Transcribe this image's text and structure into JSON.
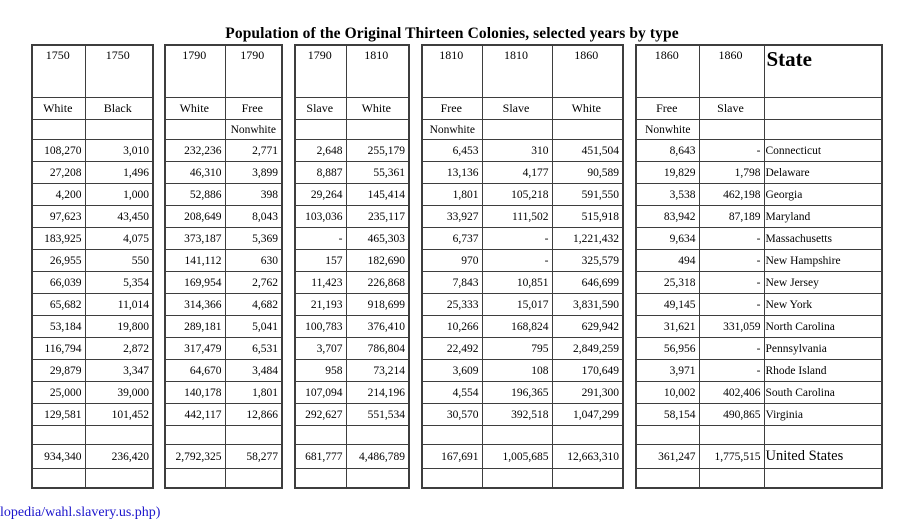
{
  "title": "Population of the Original Thirteen Colonies, selected years by type",
  "source_link": "lopedia/wahl.slavery.us.php)",
  "colors": {
    "border": "#3e3e3e",
    "link_blue": "#1b14cc",
    "text": "#000000",
    "background": "#ffffff"
  },
  "columns": [
    {
      "year": "1750",
      "type": "White",
      "nonwhite": ""
    },
    {
      "year": "1750",
      "type": "Black",
      "nonwhite": ""
    },
    {
      "year": "1790",
      "type": "White",
      "nonwhite": ""
    },
    {
      "year": "1790",
      "type": "Free",
      "nonwhite": "Nonwhite"
    },
    {
      "year": "1790",
      "type": "Slave",
      "nonwhite": ""
    },
    {
      "year": "1810",
      "type": "White",
      "nonwhite": ""
    },
    {
      "year": "1810",
      "type": "Free",
      "nonwhite": "Nonwhite"
    },
    {
      "year": "1810",
      "type": "Slave",
      "nonwhite": ""
    },
    {
      "year": "1860",
      "type": "White",
      "nonwhite": ""
    },
    {
      "year": "1860",
      "type": "Free",
      "nonwhite": "Nonwhite"
    },
    {
      "year": "1860",
      "type": "Slave",
      "nonwhite": ""
    },
    {
      "year": "State",
      "type": "",
      "nonwhite": ""
    }
  ],
  "segments": [
    {
      "col_indexes": [
        0,
        1
      ],
      "widths": [
        53,
        68
      ],
      "gap_after": 10
    },
    {
      "col_indexes": [
        2,
        3
      ],
      "widths": [
        60,
        57
      ],
      "gap_after": 11
    },
    {
      "col_indexes": [
        4,
        5
      ],
      "widths": [
        51,
        63
      ],
      "gap_after": 11
    },
    {
      "col_indexes": [
        6,
        7,
        8
      ],
      "widths": [
        60,
        70,
        71
      ],
      "gap_after": 11
    },
    {
      "col_indexes": [
        9,
        10,
        11
      ],
      "widths": [
        63,
        65,
        118
      ],
      "gap_after": 0
    }
  ],
  "rows": [
    {
      "state": "Connecticut",
      "values": [
        "108,270",
        "3,010",
        "232,236",
        "2,771",
        "2,648",
        "255,179",
        "6,453",
        "310",
        "451,504",
        "8,643",
        "-"
      ]
    },
    {
      "state": "Delaware",
      "values": [
        "27,208",
        "1,496",
        "46,310",
        "3,899",
        "8,887",
        "55,361",
        "13,136",
        "4,177",
        "90,589",
        "19,829",
        "1,798"
      ]
    },
    {
      "state": "Georgia",
      "values": [
        "4,200",
        "1,000",
        "52,886",
        "398",
        "29,264",
        "145,414",
        "1,801",
        "105,218",
        "591,550",
        "3,538",
        "462,198"
      ]
    },
    {
      "state": "Maryland",
      "values": [
        "97,623",
        "43,450",
        "208,649",
        "8,043",
        "103,036",
        "235,117",
        "33,927",
        "111,502",
        "515,918",
        "83,942",
        "87,189"
      ]
    },
    {
      "state": "Massachusetts",
      "values": [
        "183,925",
        "4,075",
        "373,187",
        "5,369",
        "-",
        "465,303",
        "6,737",
        "-",
        "1,221,432",
        "9,634",
        "-"
      ]
    },
    {
      "state": "New Hampshire",
      "values": [
        "26,955",
        "550",
        "141,112",
        "630",
        "157",
        "182,690",
        "970",
        "-",
        "325,579",
        "494",
        "-"
      ]
    },
    {
      "state": "New Jersey",
      "values": [
        "66,039",
        "5,354",
        "169,954",
        "2,762",
        "11,423",
        "226,868",
        "7,843",
        "10,851",
        "646,699",
        "25,318",
        "-"
      ]
    },
    {
      "state": "New York",
      "values": [
        "65,682",
        "11,014",
        "314,366",
        "4,682",
        "21,193",
        "918,699",
        "25,333",
        "15,017",
        "3,831,590",
        "49,145",
        "-"
      ]
    },
    {
      "state": "North Carolina",
      "values": [
        "53,184",
        "19,800",
        "289,181",
        "5,041",
        "100,783",
        "376,410",
        "10,266",
        "168,824",
        "629,942",
        "31,621",
        "331,059"
      ]
    },
    {
      "state": "Pennsylvania",
      "values": [
        "116,794",
        "2,872",
        "317,479",
        "6,531",
        "3,707",
        "786,804",
        "22,492",
        "795",
        "2,849,259",
        "56,956",
        "-"
      ]
    },
    {
      "state": "Rhode Island",
      "values": [
        "29,879",
        "3,347",
        "64,670",
        "3,484",
        "958",
        "73,214",
        "3,609",
        "108",
        "170,649",
        "3,971",
        "-"
      ]
    },
    {
      "state": "South Carolina",
      "values": [
        "25,000",
        "39,000",
        "140,178",
        "1,801",
        "107,094",
        "214,196",
        "4,554",
        "196,365",
        "291,300",
        "10,002",
        "402,406"
      ]
    },
    {
      "state": "Virginia",
      "values": [
        "129,581",
        "101,452",
        "442,117",
        "12,866",
        "292,627",
        "551,534",
        "30,570",
        "392,518",
        "1,047,299",
        "58,154",
        "490,865"
      ]
    }
  ],
  "total_row": {
    "state": "United States",
    "values": [
      "934,340",
      "236,420",
      "2,792,325",
      "58,277",
      "681,777",
      "4,486,789",
      "167,691",
      "1,005,685",
      "12,663,310",
      "361,247",
      "1,775,515"
    ]
  }
}
